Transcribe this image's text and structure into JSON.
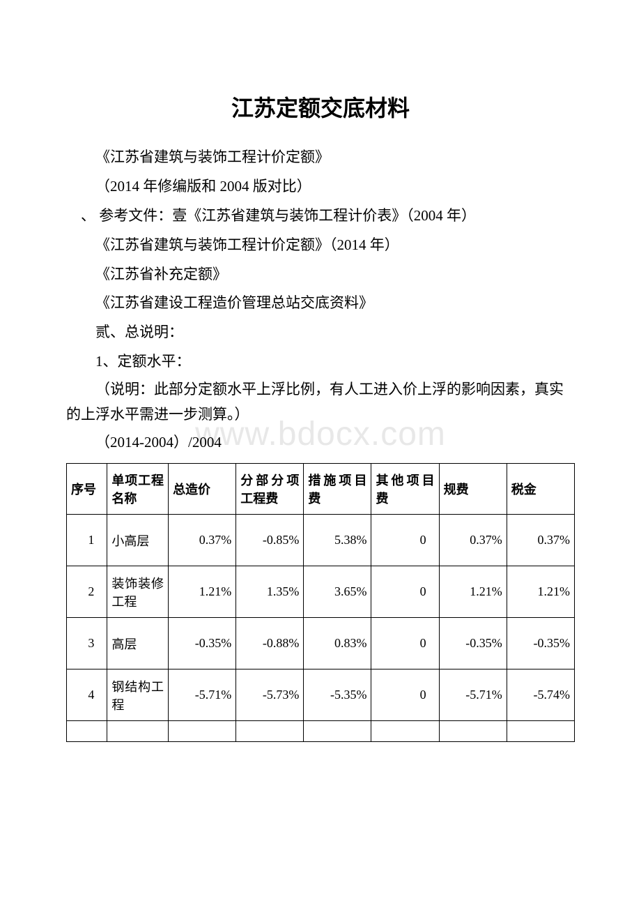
{
  "title": "江苏定额交底材料",
  "paragraphs": {
    "p1": "《江苏省建筑与装饰工程计价定额》",
    "p2": "（2014 年修编版和 2004 版对比）",
    "p3": "、 参考文件：壹《江苏省建筑与装饰工程计价表》（2004 年）",
    "p4": "《江苏省建筑与装饰工程计价定额》（2014 年）",
    "p5": "《江苏省补充定额》",
    "p6": "《江苏省建设工程造价管理总站交底资料》",
    "p7": "贰、总说明：",
    "p8": "1、定额水平：",
    "p9": "（说明：此部分定额水平上浮比例，有人工进入价上浮的影响因素，真实的上浮水平需进一步测算。）",
    "p10": "（2014-2004）/2004"
  },
  "watermark": "www.bdocx.com",
  "table": {
    "type": "table",
    "border_color": "#000000",
    "background_color": "#ffffff",
    "font_size": 18,
    "columns": [
      "序号",
      "单项工程名称",
      "总造价",
      "分部分项工程费",
      "措施项目费",
      "其他项目费",
      "规费",
      "税金"
    ],
    "rows": [
      {
        "seq": "1",
        "name": "小高层",
        "total": "0.37%",
        "sub": "-0.85%",
        "measure": "5.38%",
        "other": "0",
        "fee": "0.37%",
        "tax": "0.37%"
      },
      {
        "seq": "2",
        "name": "装饰装修工程",
        "total": "1.21%",
        "sub": "1.35%",
        "measure": "3.65%",
        "other": "0",
        "fee": "1.21%",
        "tax": "1.21%"
      },
      {
        "seq": "3",
        "name": "高层",
        "total": "-0.35%",
        "sub": "-0.88%",
        "measure": "0.83%",
        "other": "0",
        "fee": "-0.35%",
        "tax": "-0.35%"
      },
      {
        "seq": "4",
        "name": "钢结构工程",
        "total": "-5.71%",
        "sub": "-5.73%",
        "measure": "-5.35%",
        "other": "0",
        "fee": "-5.71%",
        "tax": "-5.74%"
      }
    ]
  }
}
